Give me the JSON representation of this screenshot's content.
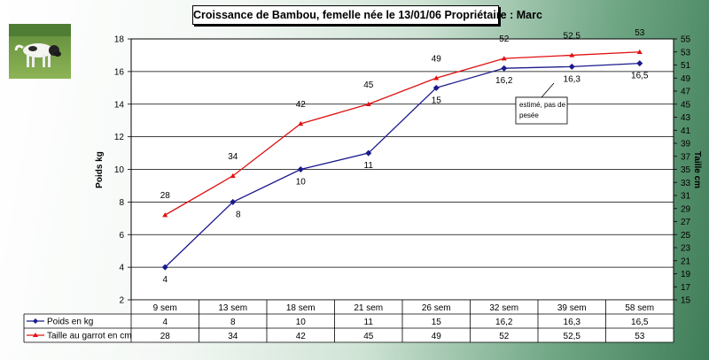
{
  "colors": {
    "weight": "#1a1a8c",
    "height": "#e01010",
    "grid": "#000000"
  },
  "chart_data": {
    "type": "line",
    "title": "Croissance de Bambou, femelle née le 13/01/06  Propriétaire : Marc",
    "categories": [
      "9 sem",
      "13 sem",
      "18 sem",
      "21 sem",
      "26 sem",
      "32 sem",
      "39 sem",
      "58 sem"
    ],
    "series": [
      {
        "name": "Poids en kg",
        "axis": "left",
        "values": [
          4,
          8,
          10,
          11,
          15,
          16.2,
          16.3,
          16.5
        ],
        "labels": [
          "4",
          "8",
          "10",
          "11",
          "15",
          "16,2",
          "16,3",
          "16,5"
        ]
      },
      {
        "name": "Taille au garrot en cm",
        "axis": "right",
        "values": [
          28,
          34,
          42,
          45,
          49,
          52,
          52.5,
          53
        ],
        "labels": [
          "28",
          "34",
          "42",
          "45",
          "49",
          "52",
          "52,5",
          "53"
        ]
      }
    ],
    "ylabel": "Poids kg",
    "y2label": "Taille cm",
    "ylim": [
      2,
      18
    ],
    "yticks": [
      "2",
      "4",
      "6",
      "8",
      "10",
      "12",
      "14",
      "16",
      "18"
    ],
    "y2lim": [
      15,
      55
    ],
    "y2ticks": [
      "15",
      "17",
      "19",
      "21",
      "23",
      "25",
      "27",
      "29",
      "31",
      "33",
      "35",
      "37",
      "39",
      "41",
      "43",
      "45",
      "47",
      "49",
      "51",
      "53",
      "55"
    ],
    "annotation": {
      "line1": "estimé, pas de",
      "line2": "pesée"
    },
    "grid": true,
    "legend": "data-table-left"
  },
  "photo": {
    "description_icon": "dog-photo"
  }
}
